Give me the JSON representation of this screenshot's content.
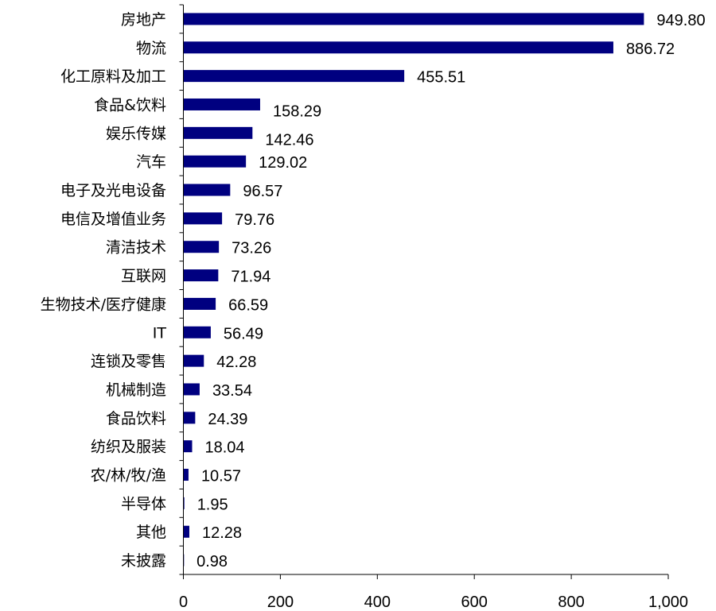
{
  "chart_data": {
    "type": "bar",
    "orientation": "horizontal",
    "title": "",
    "xlabel": "",
    "ylabel": "",
    "xlim": [
      0,
      1000
    ],
    "grid": false,
    "legend": "none",
    "bar_color": "#000080",
    "categories": [
      "房地产",
      "物流",
      "化工原料及加工",
      "食品&饮料",
      "娱乐传媒",
      "汽车",
      "电子及光电设备",
      "电信及增值业务",
      "清洁技术",
      "互联网",
      "生物技术/医疗健康",
      "IT",
      "连锁及零售",
      "机械制造",
      "食品饮料",
      "纺织及服装",
      "农/林/牧/渔",
      "半导体",
      "其他",
      "未披露"
    ],
    "values": [
      949.8,
      886.72,
      455.51,
      158.29,
      142.46,
      129.02,
      96.57,
      79.76,
      73.26,
      71.94,
      66.59,
      56.49,
      42.28,
      33.54,
      24.39,
      18.04,
      10.57,
      1.95,
      12.28,
      0.98
    ],
    "value_labels": [
      "949.80",
      "886.72",
      "455.51",
      "158.29",
      "142.46",
      "129.02",
      "96.57",
      "79.76",
      "73.26",
      "71.94",
      "66.59",
      "56.49",
      "42.28",
      "33.54",
      "24.39",
      "18.04",
      "10.57",
      "1.95",
      "12.28",
      "0.98"
    ],
    "x_ticks": [
      0,
      200,
      400,
      600,
      800,
      1000
    ],
    "x_tick_labels": [
      "0",
      "200",
      "400",
      "600",
      "800",
      "1,000"
    ]
  }
}
